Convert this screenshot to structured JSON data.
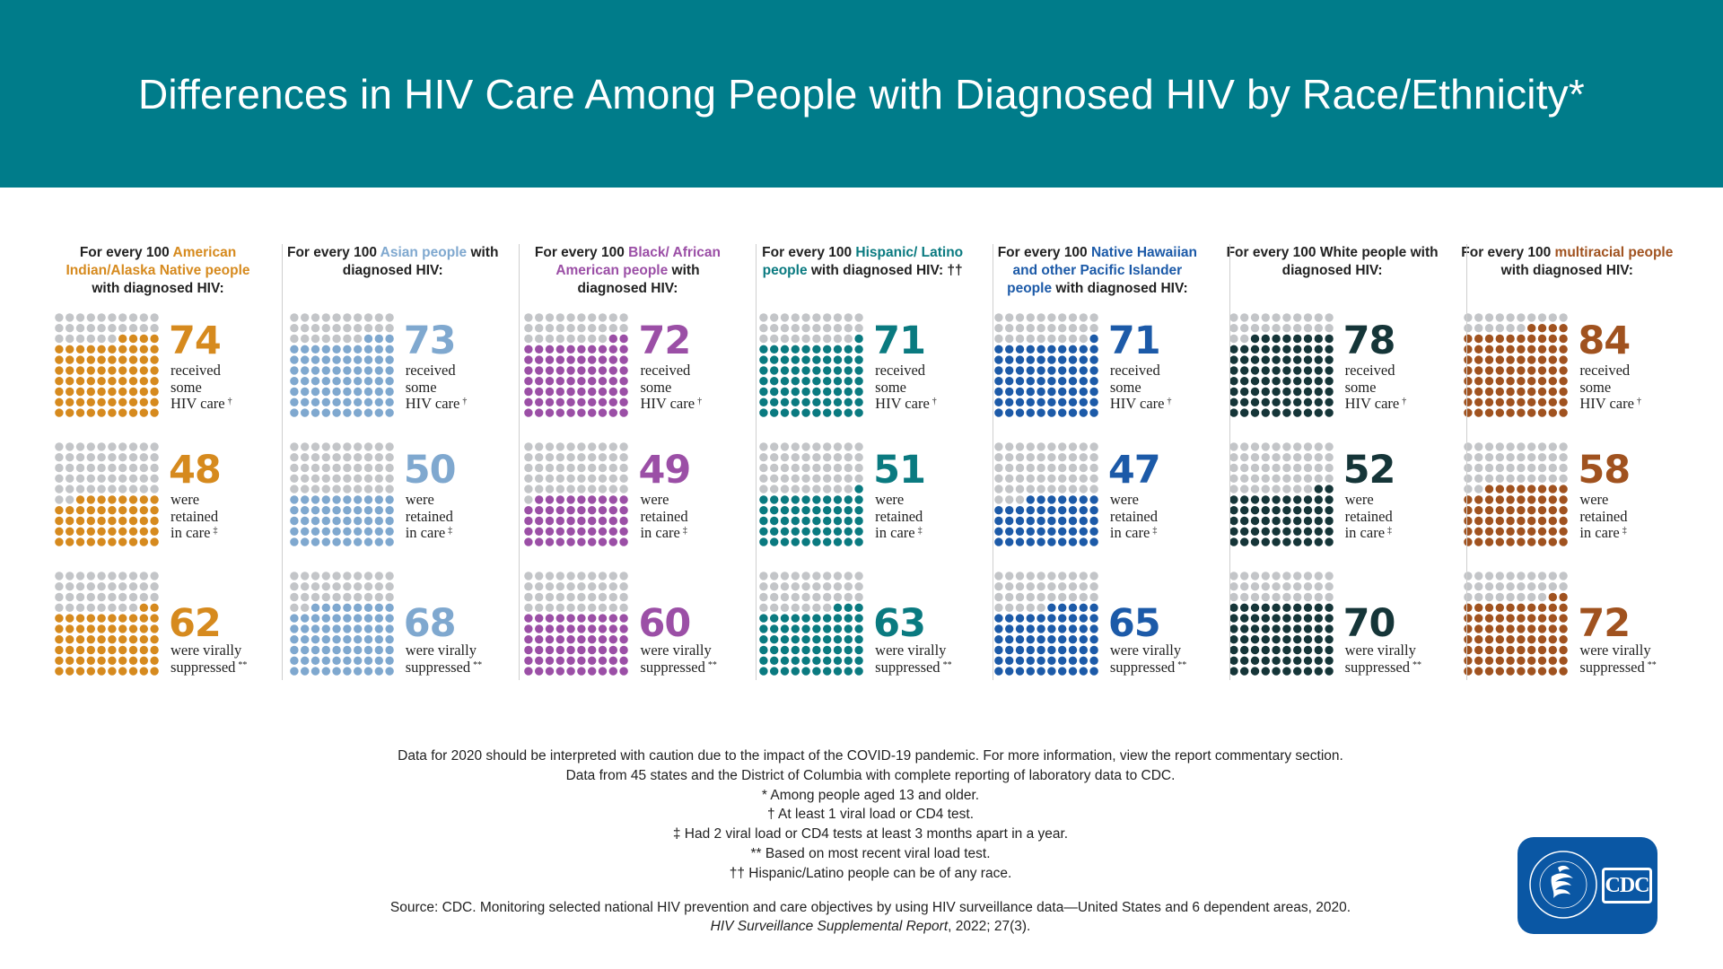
{
  "title": "Differences in HIV Care Among People with Diagnosed HIV by Race/Ethnicity*",
  "colors": {
    "banner": "#007c8a",
    "inactive_dot": "#c3c5c8",
    "logo": "#0a57a4"
  },
  "chart_data": {
    "type": "pictograph",
    "dots_per_grid": 100,
    "measures": [
      "received some HIV care",
      "were retained in care",
      "were virally suppressed"
    ],
    "groups": [
      {
        "id": "aian",
        "title_pre": "For every 100 ",
        "title_hl": "American Indian/Alaska Native people",
        "title_post": " with diagnosed HIV:",
        "color": "#d68a1e",
        "values": [
          74,
          48,
          62
        ]
      },
      {
        "id": "asian",
        "title_pre": "For every 100 ",
        "title_hl": "Asian people",
        "title_post": " with diagnosed HIV:",
        "color": "#7fa8cf",
        "values": [
          73,
          50,
          68
        ]
      },
      {
        "id": "black",
        "title_pre": "For every 100 ",
        "title_hl": "Black/ African American people",
        "title_post": " with diagnosed HIV:",
        "color": "#9b4fa6",
        "values": [
          72,
          49,
          60
        ]
      },
      {
        "id": "hispanic",
        "title_pre": "For every 100 ",
        "title_hl": "Hispanic/ Latino people",
        "title_post": " with diagnosed HIV: ††",
        "color": "#0a7a80",
        "values": [
          71,
          51,
          63
        ]
      },
      {
        "id": "nhpi",
        "title_pre": "For every 100 ",
        "title_hl": "Native Hawaiian and other Pacific Islander people",
        "title_post": " with diagnosed HIV:",
        "color": "#1c5aa8",
        "values": [
          71,
          47,
          65
        ]
      },
      {
        "id": "white",
        "title_pre": "For every 100 White people with diagnosed HIV:",
        "title_hl": "",
        "title_post": "",
        "color": "#153538",
        "values": [
          78,
          52,
          70
        ]
      },
      {
        "id": "multiracial",
        "title_pre": "For every 100 ",
        "title_hl": "multiracial people",
        "title_post": " with diagnosed HIV:",
        "color": "#a0521f",
        "values": [
          84,
          58,
          72
        ]
      }
    ]
  },
  "row_labels": [
    {
      "text": "received\nsome\nHIV care",
      "mark": "†"
    },
    {
      "text": "were\nretained\nin care",
      "mark": "‡"
    },
    {
      "text": "were virally\nsuppressed",
      "mark": "**"
    }
  ],
  "footnotes": {
    "line1": "Data for 2020 should be interpreted with caution due to the impact of the COVID-19 pandemic. For more information, view the report commentary section.",
    "line2": "Data from 45 states and the District of Columbia with complete reporting of laboratory data to CDC.",
    "line3": "* Among people aged 13 and older.",
    "line4": "† At least 1 viral load or CD4 test.",
    "line5": "‡ Had 2 viral load or CD4 tests at least 3 months apart in a year.",
    "line6": "** Based on most recent viral load test.",
    "line7": "†† Hispanic/Latino people can be of any race.",
    "source": "Source: CDC. Monitoring selected national HIV prevention and care objectives by using HIV surveillance data—United States and 6 dependent areas, 2020.",
    "source_italic": "HIV Surveillance Supplemental Report",
    "source_tail": ", 2022; 27(3)."
  },
  "logo": {
    "label": "CDC",
    "seal_text": "DEPARTMENT OF HEALTH & HUMAN SERVICES USA"
  }
}
